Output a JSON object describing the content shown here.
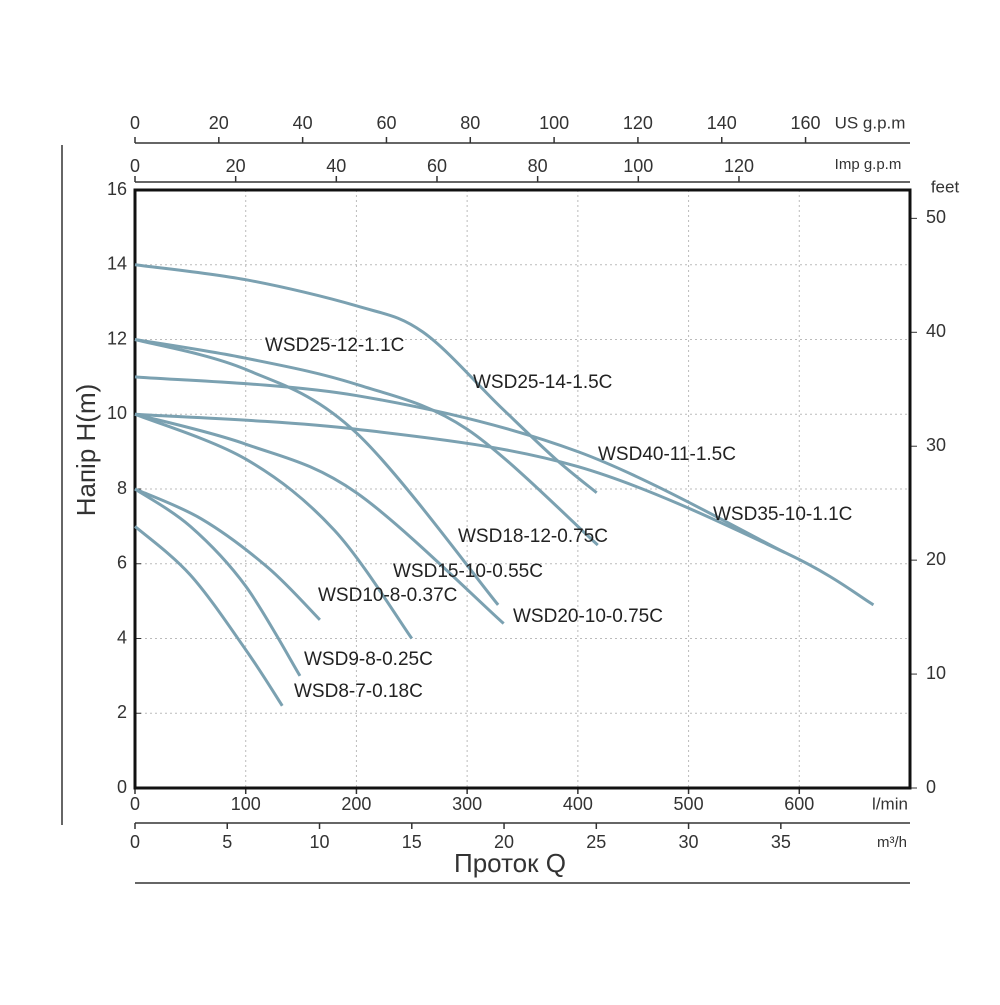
{
  "chart_data": {
    "type": "line",
    "xlabel": "Проток Q",
    "ylabel": "Напір H(m)",
    "xunit": "l/min",
    "xlim": [
      0,
      700
    ],
    "xticks": [
      0,
      100,
      200,
      300,
      400,
      500,
      600
    ],
    "x2unit": "m³/h",
    "x2lim": [
      0,
      42
    ],
    "x2ticks": [
      0,
      5,
      10,
      15,
      20,
      25,
      30,
      35
    ],
    "x3unit": "US g.p.m",
    "x3lim": [
      0,
      184.92
    ],
    "x3ticks": [
      0,
      20,
      40,
      60,
      80,
      100,
      120,
      140,
      160
    ],
    "x4unit": "Imp g.p.m",
    "x4lim": [
      0,
      153.98
    ],
    "x4ticks": [
      0,
      20,
      40,
      60,
      80,
      100,
      120
    ],
    "ylim": [
      0,
      16
    ],
    "yticks": [
      0,
      2,
      4,
      6,
      8,
      10,
      12,
      14,
      16
    ],
    "y2unit": "feet",
    "y2lim": [
      0,
      52.49
    ],
    "y2ticks": [
      0,
      10,
      20,
      30,
      40,
      50
    ],
    "grid": true,
    "series": [
      {
        "name": "WSD25-14-1.5C",
        "color": "#7ba1b1",
        "x": [
          0,
          100,
          200,
          260,
          330,
          380,
          417
        ],
        "values": [
          14,
          13.6,
          12.9,
          12.2,
          10.2,
          8.8,
          7.9
        ]
      },
      {
        "name": "WSD25-12-1.1C",
        "color": "#7ba1b1",
        "x": [
          0,
          100,
          200,
          300,
          418
        ],
        "values": [
          12,
          11.5,
          10.8,
          9.6,
          6.5
        ]
      },
      {
        "name": "WSD18-12-0.75C",
        "color": "#7ba1b1",
        "x": [
          0,
          100,
          200,
          328
        ],
        "values": [
          12,
          11.2,
          9.5,
          4.9
        ]
      },
      {
        "name": "WSD40-11-1.5C",
        "color": "#7ba1b1",
        "x": [
          0,
          200,
          400,
          587
        ],
        "values": [
          11,
          10.5,
          9,
          6.3
        ]
      },
      {
        "name": "WSD35-10-1.1C",
        "color": "#7ba1b1",
        "x": [
          0,
          200,
          400,
          587,
          667
        ],
        "values": [
          10,
          9.6,
          8.6,
          6.3,
          4.9
        ]
      },
      {
        "name": "WSD20-10-0.75C",
        "color": "#7ba1b1",
        "x": [
          0,
          100,
          200,
          333
        ],
        "values": [
          10,
          9.2,
          7.9,
          4.4
        ]
      },
      {
        "name": "WSD15-10-0.55C",
        "color": "#7ba1b1",
        "x": [
          0,
          100,
          180,
          250
        ],
        "values": [
          10,
          8.8,
          6.9,
          4
        ]
      },
      {
        "name": "WSD10-8-0.37C",
        "color": "#7ba1b1",
        "x": [
          0,
          60,
          120,
          167
        ],
        "values": [
          8,
          7.2,
          5.9,
          4.5
        ]
      },
      {
        "name": "WSD9-8-0.25C",
        "color": "#7ba1b1",
        "x": [
          0,
          50,
          100,
          149
        ],
        "values": [
          8,
          7,
          5.4,
          3
        ]
      },
      {
        "name": "WSD8-7-0.18C",
        "color": "#7ba1b1",
        "x": [
          0,
          50,
          100,
          133
        ],
        "values": [
          7,
          5.7,
          3.7,
          2.2
        ]
      }
    ]
  }
}
